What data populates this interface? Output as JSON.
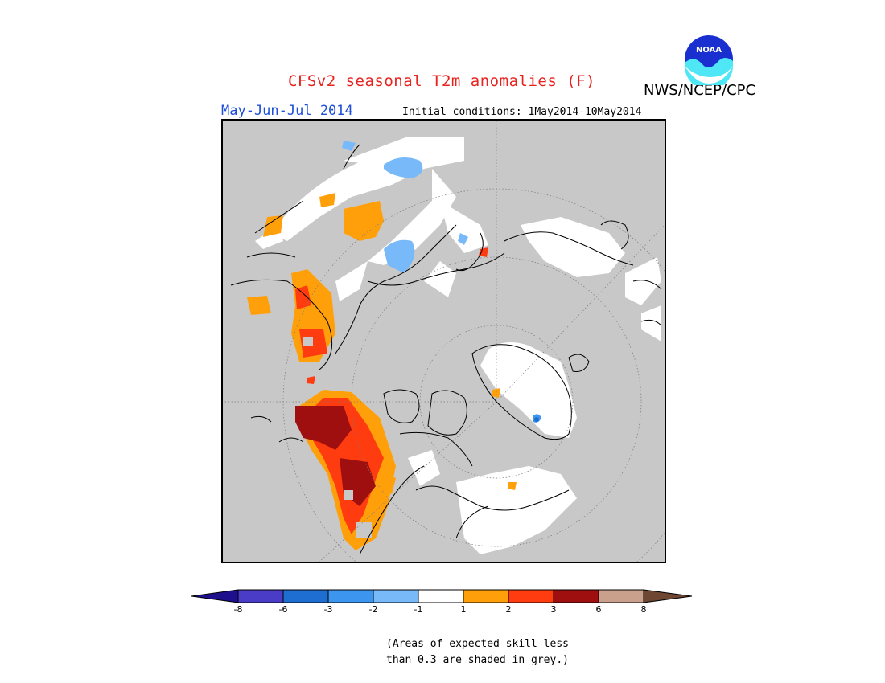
{
  "header": {
    "title": "CFSv2 seasonal T2m anomalies (F)",
    "season": "May-Jun-Jul 2014",
    "initial_conditions": "Initial conditions: 1May2014-10May2014",
    "agency": "NWS/NCEP/CPC",
    "logo_text": "NOAA"
  },
  "legend": {
    "labels": [
      "-8",
      "-6",
      "-3",
      "-2",
      "-1",
      "1",
      "2",
      "3",
      "6",
      "8"
    ],
    "colors": {
      "lt_-8": "#1e0f8c",
      "-8_-6": "#4b3cc8",
      "-6_-3": "#1e6ed2",
      "-3_-2": "#3c96f0",
      "-2_-1": "#78b9fa",
      "-1_1": "#ffffff",
      "1_2": "#ffa00a",
      "2_3": "#ff3c0f",
      "3_6": "#a00f0f",
      "6_8": "#c8a08c",
      "gt_8": "#6e4632"
    }
  },
  "footnote": {
    "line1": "(Areas of expected skill less",
    "line2": "than 0.3 are shaded in grey.)"
  },
  "map": {
    "projection": "polar stereographic (north)",
    "background": "#c8c8c8"
  }
}
